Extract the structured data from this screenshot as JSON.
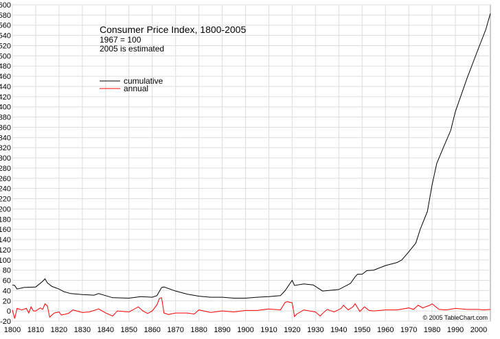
{
  "chart_data": {
    "type": "line",
    "title": "Consumer Price Index, 1800-2005",
    "subtitle": [
      "1967 = 100",
      "2005 is estimated"
    ],
    "annotation": "© 2005 TableChart.com",
    "xlim": [
      1800,
      2005
    ],
    "xticks": [
      1800,
      1810,
      1820,
      1830,
      1840,
      1850,
      1860,
      1870,
      1880,
      1890,
      1900,
      1910,
      1920,
      1930,
      1940,
      1950,
      1960,
      1970,
      1980,
      1990,
      2000
    ],
    "ylim": [
      -20,
      600
    ],
    "yticks": [
      -20,
      0,
      20,
      40,
      60,
      80,
      100,
      120,
      140,
      160,
      180,
      200,
      220,
      240,
      260,
      280,
      300,
      320,
      340,
      360,
      380,
      400,
      420,
      440,
      460,
      480,
      500,
      520,
      540,
      560,
      580,
      600
    ],
    "grid": true,
    "series": [
      {
        "name": "cumulative",
        "color": "#000000",
        "x": [
          1800,
          1801,
          1802,
          1805,
          1810,
          1813,
          1814,
          1815,
          1817,
          1820,
          1822,
          1825,
          1830,
          1835,
          1837,
          1840,
          1843,
          1850,
          1855,
          1860,
          1862,
          1864,
          1865,
          1870,
          1875,
          1880,
          1885,
          1890,
          1895,
          1900,
          1905,
          1910,
          1915,
          1917,
          1920,
          1921,
          1925,
          1929,
          1933,
          1940,
          1945,
          1947,
          1948,
          1950,
          1952,
          1955,
          1960,
          1965,
          1967,
          1970,
          1973,
          1975,
          1978,
          1980,
          1982,
          1985,
          1988,
          1990,
          1995,
          2000,
          2003,
          2005
        ],
        "values": [
          51,
          50,
          43,
          46,
          47,
          58,
          63,
          55,
          48,
          43,
          38,
          34,
          32,
          31,
          34,
          30,
          26,
          25,
          28,
          27,
          30,
          46,
          47,
          39,
          33,
          29,
          27,
          27,
          25,
          25,
          27,
          28,
          30,
          40,
          60,
          50,
          53,
          51,
          39,
          42,
          54,
          67,
          72,
          72,
          79,
          80,
          89,
          95,
          100,
          116,
          133,
          161,
          195,
          247,
          289,
          322,
          354,
          391,
          456,
          516,
          551,
          583
        ]
      },
      {
        "name": "annual",
        "color": "#ff0000",
        "x": [
          1800,
          1801,
          1802,
          1804,
          1806,
          1807,
          1808,
          1809,
          1810,
          1812,
          1813,
          1814,
          1815,
          1816,
          1818,
          1820,
          1821,
          1824,
          1826,
          1830,
          1833,
          1837,
          1840,
          1843,
          1845,
          1850,
          1854,
          1856,
          1858,
          1860,
          1862,
          1863,
          1864,
          1865,
          1867,
          1870,
          1875,
          1878,
          1880,
          1885,
          1890,
          1895,
          1900,
          1905,
          1910,
          1915,
          1917,
          1918,
          1920,
          1921,
          1922,
          1925,
          1930,
          1932,
          1933,
          1935,
          1938,
          1941,
          1942,
          1944,
          1946,
          1947,
          1949,
          1951,
          1953,
          1955,
          1960,
          1965,
          1970,
          1972,
          1974,
          1976,
          1979,
          1980,
          1983,
          1986,
          1990,
          1995,
          2000,
          2002,
          2005
        ],
        "values": [
          2,
          -15,
          5,
          2,
          5,
          -4,
          8,
          0,
          0,
          6,
          3,
          14,
          10,
          -12,
          -4,
          -2,
          -8,
          -5,
          2,
          -3,
          -2,
          4,
          -4,
          -10,
          0,
          -2,
          8,
          0,
          -5,
          0,
          12,
          24,
          26,
          -4,
          -7,
          -4,
          -4,
          -6,
          2,
          -3,
          0,
          -2,
          1,
          1,
          4,
          2,
          17,
          18,
          16,
          -11,
          -6,
          2,
          -2,
          -10,
          -5,
          3,
          -2,
          5,
          11,
          2,
          8,
          14,
          -1,
          8,
          1,
          0,
          2,
          2,
          6,
          3,
          11,
          6,
          11,
          14,
          3,
          2,
          5,
          3,
          3,
          2,
          3
        ]
      }
    ]
  }
}
